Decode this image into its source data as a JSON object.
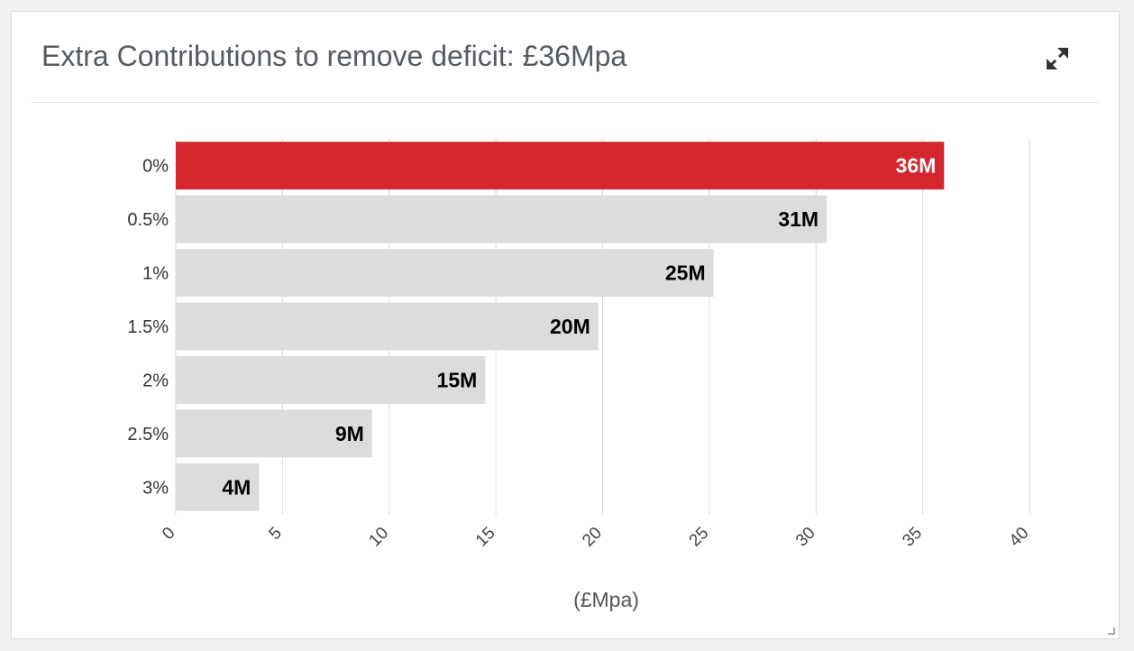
{
  "panel": {
    "title": "Extra Contributions to remove deficit: £36Mpa",
    "expand_icon": "expand-arrows-icon",
    "resize_icon": "resize-grip-icon"
  },
  "colors": {
    "highlight": "#d3262e",
    "bar": "#dcdcdc",
    "gridline": "#d8d8d8",
    "highlight_label": "#ffffff",
    "bar_label": "#000000"
  },
  "chart_data": {
    "type": "bar",
    "orientation": "horizontal",
    "categories": [
      "0%",
      "0.5%",
      "1%",
      "1.5%",
      "2%",
      "2.5%",
      "3%"
    ],
    "values": [
      36,
      30.5,
      25.2,
      19.8,
      14.5,
      9.2,
      3.9
    ],
    "data_labels": [
      "36M",
      "31M",
      "25M",
      "20M",
      "15M",
      "9M",
      "4M"
    ],
    "highlight_index": 0,
    "xlabel": "(£Mpa)",
    "ylabel": "",
    "xlim": [
      0,
      40
    ],
    "xticks": [
      "0",
      "5",
      "10",
      "15",
      "20",
      "25",
      "30",
      "35",
      "40"
    ],
    "grid": true
  }
}
